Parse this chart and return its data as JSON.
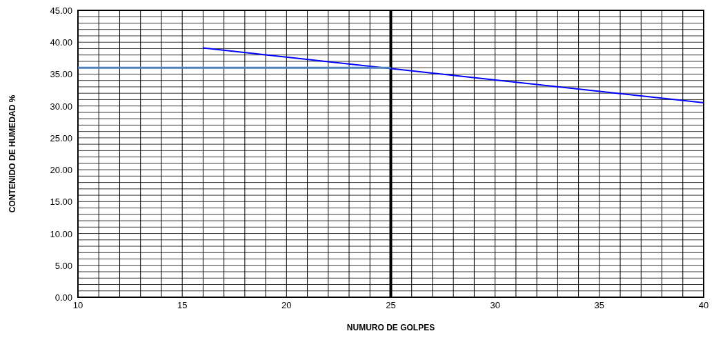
{
  "chart_data": {
    "type": "line",
    "xlabel": "NUMURO  DE  GOLPES",
    "ylabel": "CONTENIDO  DE HUMEDAD  %",
    "xlim": [
      10,
      40
    ],
    "ylim": [
      0,
      45
    ],
    "xticks": [
      10,
      {
        "value": 11,
        "label": null
      },
      {
        "value": 12,
        "label": null
      },
      {
        "value": 13,
        "label": null
      },
      {
        "value": 14,
        "label": null
      },
      15,
      {
        "value": 16,
        "label": null
      },
      {
        "value": 17,
        "label": null
      },
      {
        "value": 18,
        "label": null
      },
      {
        "value": 19,
        "label": null
      },
      20,
      {
        "value": 21,
        "label": null
      },
      {
        "value": 22,
        "label": null
      },
      {
        "value": 23,
        "label": null
      },
      {
        "value": 24,
        "label": null
      },
      25,
      {
        "value": 26,
        "label": null
      },
      {
        "value": 27,
        "label": null
      },
      {
        "value": 28,
        "label": null
      },
      {
        "value": 29,
        "label": null
      },
      30,
      {
        "value": 31,
        "label": null
      },
      {
        "value": 32,
        "label": null
      },
      {
        "value": 33,
        "label": null
      },
      {
        "value": 34,
        "label": null
      },
      35,
      {
        "value": 36,
        "label": null
      },
      {
        "value": 37,
        "label": null
      },
      {
        "value": 38,
        "label": null
      },
      {
        "value": 39,
        "label": null
      },
      40
    ],
    "yticks": [
      {
        "value": 0,
        "label": "0.00"
      },
      {
        "value": 1,
        "label": null
      },
      {
        "value": 2,
        "label": null
      },
      {
        "value": 3,
        "label": null
      },
      {
        "value": 4,
        "label": null
      },
      {
        "value": 5,
        "label": "5.00"
      },
      {
        "value": 6,
        "label": null
      },
      {
        "value": 7,
        "label": null
      },
      {
        "value": 8,
        "label": null
      },
      {
        "value": 9,
        "label": null
      },
      {
        "value": 10,
        "label": "10.00"
      },
      {
        "value": 11,
        "label": null
      },
      {
        "value": 12,
        "label": null
      },
      {
        "value": 13,
        "label": null
      },
      {
        "value": 14,
        "label": null
      },
      {
        "value": 15,
        "label": "15.00"
      },
      {
        "value": 16,
        "label": null
      },
      {
        "value": 17,
        "label": null
      },
      {
        "value": 18,
        "label": null
      },
      {
        "value": 19,
        "label": null
      },
      {
        "value": 20,
        "label": "20.00"
      },
      {
        "value": 21,
        "label": null
      },
      {
        "value": 22,
        "label": null
      },
      {
        "value": 23,
        "label": null
      },
      {
        "value": 24,
        "label": null
      },
      {
        "value": 25,
        "label": "25.00"
      },
      {
        "value": 26,
        "label": null
      },
      {
        "value": 27,
        "label": null
      },
      {
        "value": 28,
        "label": null
      },
      {
        "value": 29,
        "label": null
      },
      {
        "value": 30,
        "label": "30.00"
      },
      {
        "value": 31,
        "label": null
      },
      {
        "value": 32,
        "label": null
      },
      {
        "value": 33,
        "label": null
      },
      {
        "value": 34,
        "label": null
      },
      {
        "value": 35,
        "label": "35.00"
      },
      {
        "value": 36,
        "label": null
      },
      {
        "value": 37,
        "label": null
      },
      {
        "value": 38,
        "label": null
      },
      {
        "value": 39,
        "label": null
      },
      {
        "value": 40,
        "label": "40.00"
      },
      {
        "value": 41,
        "label": null
      },
      {
        "value": 42,
        "label": null
      },
      {
        "value": 43,
        "label": null
      },
      {
        "value": 44,
        "label": null
      },
      {
        "value": 45,
        "label": "45.00"
      }
    ],
    "grid": true,
    "marker": "none",
    "line_style": "solid",
    "series": [
      {
        "color": "#0000ff",
        "x": [
          16,
          40
        ],
        "values": [
          39.1,
          30.5
        ]
      },
      {
        "color": "#4f81bd",
        "x": [
          10,
          25
        ],
        "values": [
          36,
          36
        ]
      }
    ],
    "ref_lines": [
      {
        "axis": "x",
        "value": 25,
        "color": "#000000"
      }
    ]
  }
}
